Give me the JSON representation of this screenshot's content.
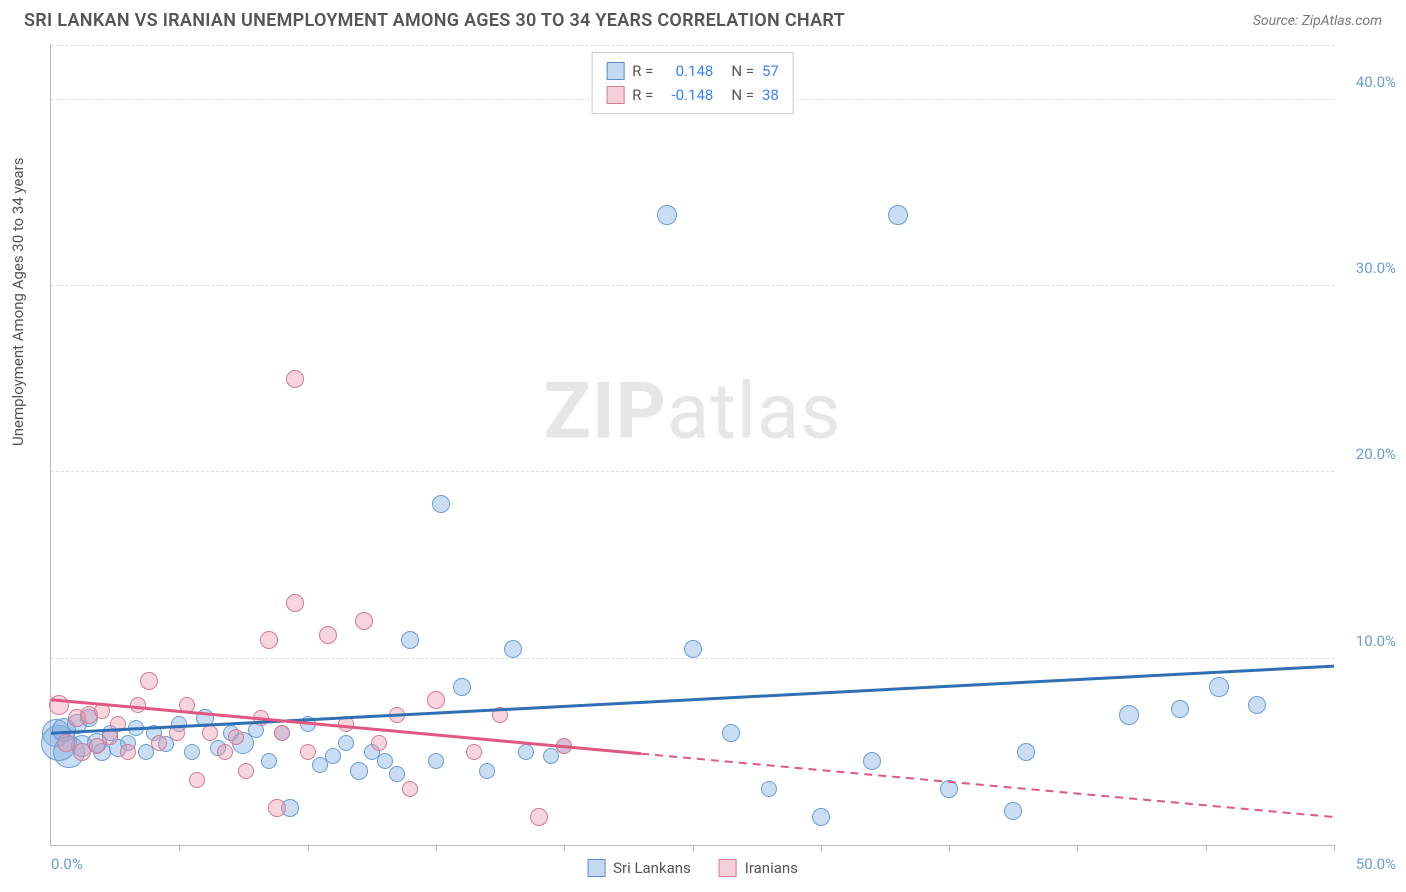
{
  "header": {
    "title": "SRI LANKAN VS IRANIAN UNEMPLOYMENT AMONG AGES 30 TO 34 YEARS CORRELATION CHART",
    "source": "Source: ZipAtlas.com"
  },
  "watermark": {
    "zip": "ZIP",
    "atlas": "atlas"
  },
  "axes": {
    "ylabel": "Unemployment Among Ages 30 to 34 years",
    "x_min": 0,
    "x_max": 50,
    "y_min": 0,
    "y_max": 43,
    "y_ticks": [
      10,
      20,
      30,
      40
    ],
    "y_tick_labels": [
      "10.0%",
      "20.0%",
      "30.0%",
      "40.0%"
    ],
    "x_ticks": [
      5,
      10,
      15,
      20,
      25,
      30,
      35,
      40,
      45,
      50
    ],
    "x_start_label": "0.0%",
    "x_end_label": "50.0%",
    "grid_color": "#dddddd",
    "axis_color": "#bbbbbb"
  },
  "stats": {
    "rows": [
      {
        "r_label": "R =",
        "r_value": "0.148",
        "n_label": "N =",
        "n_value": "57"
      },
      {
        "r_label": "R =",
        "r_value": "-0.148",
        "n_label": "N =",
        "n_value": "38"
      }
    ],
    "swatch_colors": [
      {
        "fill": "rgba(120,170,225,0.45)",
        "stroke": "#5a8fc7"
      },
      {
        "fill": "rgba(235,150,170,0.45)",
        "stroke": "#d77a94"
      }
    ]
  },
  "legend": {
    "items": [
      {
        "label": "Sri Lankans",
        "fill": "rgba(120,170,225,0.45)",
        "stroke": "#5a8fc7"
      },
      {
        "label": "Iranians",
        "fill": "rgba(235,150,170,0.45)",
        "stroke": "#d77a94"
      }
    ]
  },
  "series": [
    {
      "name": "Sri Lankans",
      "fill": "rgba(120,170,225,0.40)",
      "stroke": "#6a9ed4",
      "trend": {
        "x1": 0,
        "y1": 6.0,
        "x2": 50,
        "y2": 9.6,
        "solid_until_x": 50,
        "color": "#2f6fb3",
        "width": 3
      },
      "points": [
        {
          "x": 0.2,
          "y": 6.0,
          "r": 14
        },
        {
          "x": 0.3,
          "y": 5.5,
          "r": 18
        },
        {
          "x": 0.5,
          "y": 6.2,
          "r": 12
        },
        {
          "x": 0.7,
          "y": 5.0,
          "r": 16
        },
        {
          "x": 1.0,
          "y": 6.5,
          "r": 10
        },
        {
          "x": 1.2,
          "y": 5.3,
          "r": 11
        },
        {
          "x": 1.5,
          "y": 6.8,
          "r": 9
        },
        {
          "x": 1.8,
          "y": 5.5,
          "r": 10
        },
        {
          "x": 2.0,
          "y": 5.0,
          "r": 9
        },
        {
          "x": 2.3,
          "y": 6.0,
          "r": 8
        },
        {
          "x": 2.6,
          "y": 5.2,
          "r": 9
        },
        {
          "x": 3.0,
          "y": 5.5,
          "r": 8
        },
        {
          "x": 3.3,
          "y": 6.3,
          "r": 8
        },
        {
          "x": 3.7,
          "y": 5.0,
          "r": 8
        },
        {
          "x": 4.0,
          "y": 6.0,
          "r": 8
        },
        {
          "x": 4.5,
          "y": 5.4,
          "r": 8
        },
        {
          "x": 5.0,
          "y": 6.5,
          "r": 8
        },
        {
          "x": 5.5,
          "y": 5.0,
          "r": 8
        },
        {
          "x": 6.0,
          "y": 6.8,
          "r": 9
        },
        {
          "x": 6.5,
          "y": 5.2,
          "r": 8
        },
        {
          "x": 7.0,
          "y": 6.0,
          "r": 8
        },
        {
          "x": 7.5,
          "y": 5.5,
          "r": 11
        },
        {
          "x": 8.0,
          "y": 6.2,
          "r": 8
        },
        {
          "x": 8.5,
          "y": 4.5,
          "r": 8
        },
        {
          "x": 9.0,
          "y": 6.0,
          "r": 8
        },
        {
          "x": 9.3,
          "y": 2.0,
          "r": 9
        },
        {
          "x": 10.0,
          "y": 6.5,
          "r": 8
        },
        {
          "x": 10.5,
          "y": 4.3,
          "r": 8
        },
        {
          "x": 11.0,
          "y": 4.8,
          "r": 8
        },
        {
          "x": 11.5,
          "y": 5.5,
          "r": 8
        },
        {
          "x": 12.0,
          "y": 4.0,
          "r": 9
        },
        {
          "x": 12.5,
          "y": 5.0,
          "r": 8
        },
        {
          "x": 13.0,
          "y": 4.5,
          "r": 8
        },
        {
          "x": 13.5,
          "y": 3.8,
          "r": 8
        },
        {
          "x": 14.0,
          "y": 11.0,
          "r": 9
        },
        {
          "x": 15.0,
          "y": 4.5,
          "r": 8
        },
        {
          "x": 15.2,
          "y": 18.3,
          "r": 9
        },
        {
          "x": 16.0,
          "y": 8.5,
          "r": 9
        },
        {
          "x": 17.0,
          "y": 4.0,
          "r": 8
        },
        {
          "x": 18.0,
          "y": 10.5,
          "r": 9
        },
        {
          "x": 18.5,
          "y": 5.0,
          "r": 8
        },
        {
          "x": 19.5,
          "y": 4.8,
          "r": 8
        },
        {
          "x": 20.0,
          "y": 5.3,
          "r": 8
        },
        {
          "x": 24.0,
          "y": 33.8,
          "r": 10
        },
        {
          "x": 25.0,
          "y": 10.5,
          "r": 9
        },
        {
          "x": 26.5,
          "y": 6.0,
          "r": 9
        },
        {
          "x": 28.0,
          "y": 3.0,
          "r": 8
        },
        {
          "x": 30.0,
          "y": 1.5,
          "r": 9
        },
        {
          "x": 32.0,
          "y": 4.5,
          "r": 9
        },
        {
          "x": 33.0,
          "y": 33.8,
          "r": 10
        },
        {
          "x": 35.0,
          "y": 3.0,
          "r": 9
        },
        {
          "x": 37.5,
          "y": 1.8,
          "r": 9
        },
        {
          "x": 38.0,
          "y": 5.0,
          "r": 9
        },
        {
          "x": 42.0,
          "y": 7.0,
          "r": 10
        },
        {
          "x": 44.0,
          "y": 7.3,
          "r": 9
        },
        {
          "x": 45.5,
          "y": 8.5,
          "r": 10
        },
        {
          "x": 47.0,
          "y": 7.5,
          "r": 9
        }
      ]
    },
    {
      "name": "Iranians",
      "fill": "rgba(235,150,170,0.40)",
      "stroke": "#d77a94",
      "trend": {
        "x1": 0,
        "y1": 7.8,
        "x2": 50,
        "y2": 1.5,
        "solid_until_x": 23,
        "color": "#e05780",
        "width": 3
      },
      "points": [
        {
          "x": 0.3,
          "y": 7.5,
          "r": 10
        },
        {
          "x": 0.6,
          "y": 5.5,
          "r": 9
        },
        {
          "x": 1.0,
          "y": 6.8,
          "r": 9
        },
        {
          "x": 1.2,
          "y": 5.0,
          "r": 9
        },
        {
          "x": 1.5,
          "y": 7.0,
          "r": 9
        },
        {
          "x": 1.8,
          "y": 5.3,
          "r": 8
        },
        {
          "x": 2.0,
          "y": 7.2,
          "r": 8
        },
        {
          "x": 2.3,
          "y": 5.8,
          "r": 8
        },
        {
          "x": 2.6,
          "y": 6.5,
          "r": 8
        },
        {
          "x": 3.0,
          "y": 5.0,
          "r": 8
        },
        {
          "x": 3.4,
          "y": 7.5,
          "r": 8
        },
        {
          "x": 3.8,
          "y": 8.8,
          "r": 9
        },
        {
          "x": 4.2,
          "y": 5.5,
          "r": 8
        },
        {
          "x": 4.9,
          "y": 6.0,
          "r": 8
        },
        {
          "x": 5.3,
          "y": 7.5,
          "r": 8
        },
        {
          "x": 5.7,
          "y": 3.5,
          "r": 8
        },
        {
          "x": 6.2,
          "y": 6.0,
          "r": 8
        },
        {
          "x": 6.8,
          "y": 5.0,
          "r": 8
        },
        {
          "x": 7.2,
          "y": 5.8,
          "r": 8
        },
        {
          "x": 7.6,
          "y": 4.0,
          "r": 8
        },
        {
          "x": 8.2,
          "y": 6.8,
          "r": 8
        },
        {
          "x": 8.5,
          "y": 11.0,
          "r": 9
        },
        {
          "x": 8.8,
          "y": 2.0,
          "r": 9
        },
        {
          "x": 9.0,
          "y": 6.0,
          "r": 8
        },
        {
          "x": 9.5,
          "y": 13.0,
          "r": 9
        },
        {
          "x": 9.5,
          "y": 25.0,
          "r": 9
        },
        {
          "x": 10.0,
          "y": 5.0,
          "r": 8
        },
        {
          "x": 10.8,
          "y": 11.3,
          "r": 9
        },
        {
          "x": 11.5,
          "y": 6.5,
          "r": 8
        },
        {
          "x": 12.2,
          "y": 12.0,
          "r": 9
        },
        {
          "x": 12.8,
          "y": 5.5,
          "r": 8
        },
        {
          "x": 13.5,
          "y": 7.0,
          "r": 8
        },
        {
          "x": 14.0,
          "y": 3.0,
          "r": 8
        },
        {
          "x": 15.0,
          "y": 7.8,
          "r": 9
        },
        {
          "x": 16.5,
          "y": 5.0,
          "r": 8
        },
        {
          "x": 17.5,
          "y": 7.0,
          "r": 8
        },
        {
          "x": 19.0,
          "y": 1.5,
          "r": 9
        },
        {
          "x": 20.0,
          "y": 5.3,
          "r": 8
        }
      ]
    }
  ]
}
